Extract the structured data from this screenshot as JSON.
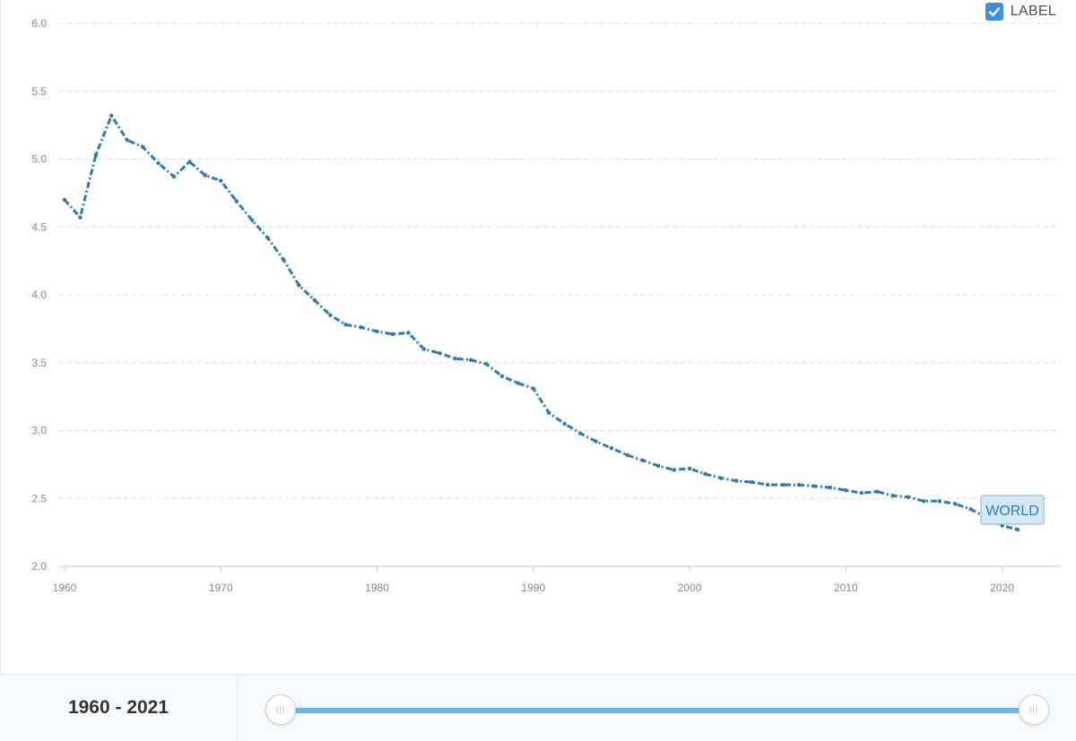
{
  "label_toggle": {
    "text": "LABEL",
    "checked": true
  },
  "range": {
    "text": "1960 - 2021",
    "start": 1960,
    "end": 2021
  },
  "colors": {
    "line": "#2e7bb4",
    "grid": "#dcdcdc",
    "tick": "#888888",
    "badge_bg": "#d6e8f6",
    "badge_border": "#7fb3da",
    "slider": "#6db9ee"
  },
  "chart_data": {
    "type": "line",
    "title": "",
    "xlabel": "",
    "ylabel": "",
    "xlim": [
      1960,
      2021
    ],
    "ylim": [
      2.0,
      6.0
    ],
    "y_ticks": [
      "2.0",
      "2.5",
      "3.0",
      "3.5",
      "4.0",
      "4.5",
      "5.0",
      "5.5",
      "6.0"
    ],
    "x_ticks": [
      "1960",
      "1970",
      "1980",
      "1990",
      "2000",
      "2010",
      "2020"
    ],
    "grid": true,
    "series": [
      {
        "name": "WORLD",
        "x": [
          1960,
          1961,
          1962,
          1963,
          1964,
          1965,
          1966,
          1967,
          1968,
          1969,
          1970,
          1971,
          1972,
          1973,
          1974,
          1975,
          1976,
          1977,
          1978,
          1979,
          1980,
          1981,
          1982,
          1983,
          1984,
          1985,
          1986,
          1987,
          1988,
          1989,
          1990,
          1991,
          1992,
          1993,
          1994,
          1995,
          1996,
          1997,
          1998,
          1999,
          2000,
          2001,
          2002,
          2003,
          2004,
          2005,
          2006,
          2007,
          2008,
          2009,
          2010,
          2011,
          2012,
          2013,
          2014,
          2015,
          2016,
          2017,
          2018,
          2019,
          2020,
          2021
        ],
        "values": [
          4.7,
          4.57,
          5.03,
          5.32,
          5.14,
          5.09,
          4.97,
          4.87,
          4.98,
          4.88,
          4.84,
          4.69,
          4.55,
          4.42,
          4.26,
          4.07,
          3.96,
          3.85,
          3.78,
          3.76,
          3.73,
          3.71,
          3.72,
          3.6,
          3.57,
          3.53,
          3.52,
          3.49,
          3.4,
          3.35,
          3.31,
          3.13,
          3.05,
          2.98,
          2.92,
          2.87,
          2.82,
          2.78,
          2.74,
          2.71,
          2.72,
          2.68,
          2.65,
          2.63,
          2.62,
          2.6,
          2.6,
          2.6,
          2.59,
          2.58,
          2.56,
          2.54,
          2.55,
          2.52,
          2.51,
          2.48,
          2.48,
          2.46,
          2.42,
          2.36,
          2.3,
          2.27
        ]
      }
    ]
  }
}
